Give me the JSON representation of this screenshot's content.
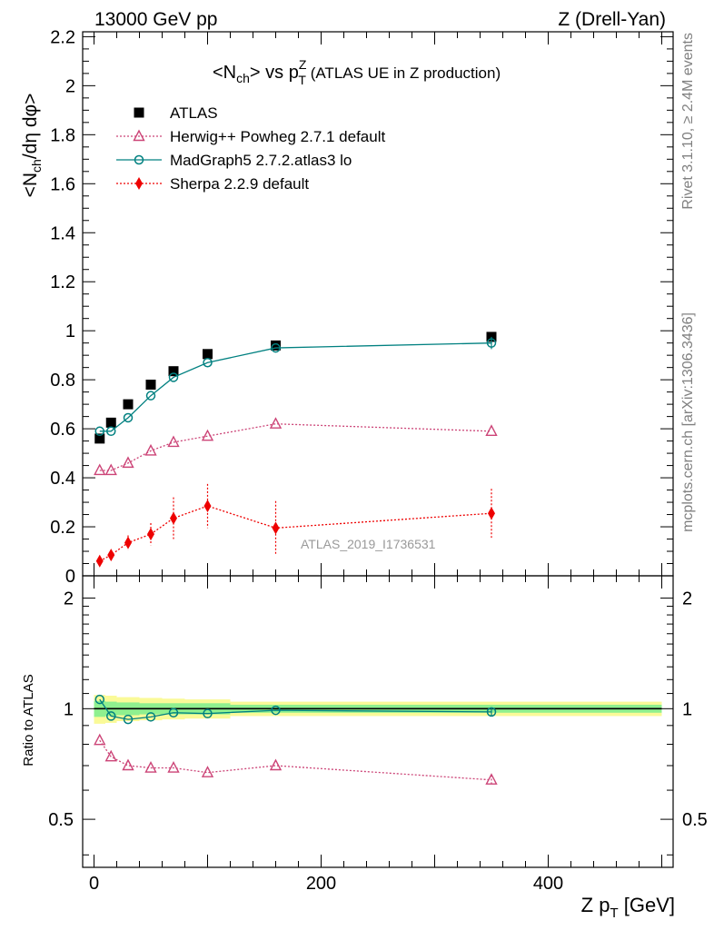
{
  "header": {
    "energy": "13000 GeV pp",
    "process": "Z (Drell-Yan)"
  },
  "side_labels": {
    "rivet": "Rivet 3.1.10, ≥ 2.4M events",
    "source": "mcplots.cern.ch [arXiv:1306.3436]"
  },
  "watermark": "ATLAS_2019_I1736531",
  "colors": {
    "atlas": "#000000",
    "herwig": "#cc4477",
    "madgraph": "#008080",
    "sherpa": "#ee0000",
    "band_inner": "#8ff08f",
    "band_outer": "#fafa98"
  },
  "chart_data": [
    {
      "type": "scatter",
      "panel": "main",
      "title": {
        "main": "<N",
        "sub": "ch",
        "mid": "> vs p",
        "sub2": "T",
        "sup2": "Z",
        "rest": " (ATLAS UE in Z production)"
      },
      "ylabel": {
        "a": "<N",
        "b": "ch",
        "c": "/dη dφ>"
      },
      "xlim": [
        -10,
        510
      ],
      "ylim": [
        0,
        2.22
      ],
      "yticks": [
        0,
        0.2,
        0.4,
        0.6,
        0.8,
        1,
        1.2,
        1.4,
        1.6,
        1.8,
        2,
        2.2
      ],
      "ytick_labels": [
        "0",
        "0.2",
        "0.4",
        "0.6",
        "0.8",
        "1",
        "1.2",
        "1.4",
        "1.6",
        "1.8",
        "2",
        "2.2"
      ],
      "legend_position": "top-left",
      "x": [
        5,
        15,
        30,
        50,
        70,
        100,
        160,
        350
      ],
      "series": [
        {
          "name": "ATLAS",
          "key": "atlas",
          "marker": "square",
          "values": [
            0.56,
            0.625,
            0.7,
            0.78,
            0.835,
            0.905,
            0.94,
            0.975
          ]
        },
        {
          "name": "Herwig++ Powheg 2.7.1 default",
          "key": "herwig",
          "marker": "triangle",
          "line": "dotted",
          "values": [
            0.43,
            0.43,
            0.46,
            0.51,
            0.545,
            0.57,
            0.62,
            0.59
          ]
        },
        {
          "name": "MadGraph5 2.7.2.atlas3 lo",
          "key": "madgraph",
          "marker": "circle",
          "line": "solid",
          "values": [
            0.59,
            0.59,
            0.645,
            0.735,
            0.81,
            0.87,
            0.93,
            0.95
          ],
          "errors": [
            0,
            0,
            0,
            0,
            0,
            0,
            0,
            0.025
          ]
        },
        {
          "name": "Sherpa 2.2.9 default",
          "key": "sherpa",
          "marker": "diamond",
          "line": "dotted",
          "values": [
            0.06,
            0.085,
            0.135,
            0.17,
            0.235,
            0.285,
            0.195,
            0.255
          ],
          "errors": [
            0.01,
            0.015,
            0.03,
            0.045,
            0.085,
            0.09,
            0.11,
            0.1
          ]
        }
      ]
    },
    {
      "type": "line",
      "panel": "ratio",
      "ylabel": "Ratio to ATLAS",
      "xlabel": {
        "a": "Z p",
        "sub": "T",
        "rest": " [GeV]"
      },
      "xlim": [
        -10,
        510
      ],
      "ylim": [
        0.37,
        2.3
      ],
      "yscale": "log",
      "yticks": [
        0.5,
        1,
        2
      ],
      "ytick_labels": [
        "0.5",
        "1",
        "2"
      ],
      "xticks": [
        0,
        200,
        400
      ],
      "xtick_labels": [
        "0",
        "200",
        "400"
      ],
      "x": [
        5,
        15,
        30,
        50,
        70,
        100,
        160,
        350
      ],
      "band_edges": [
        0,
        10,
        20,
        40,
        60,
        80,
        120,
        200,
        500
      ],
      "band_inner": [
        0.05,
        0.045,
        0.04,
        0.035,
        0.035,
        0.035,
        0.025,
        0.025
      ],
      "band_outer": [
        0.09,
        0.085,
        0.075,
        0.07,
        0.065,
        0.06,
        0.045,
        0.045
      ],
      "series": [
        {
          "name": "Herwig++ Powheg 2.7.1 default",
          "key": "herwig",
          "marker": "triangle",
          "line": "dotted",
          "values": [
            0.82,
            0.74,
            0.7,
            0.69,
            0.69,
            0.67,
            0.7,
            0.64
          ],
          "errors": [
            0,
            0,
            0,
            0,
            0,
            0,
            0,
            0.02
          ]
        },
        {
          "name": "MadGraph5 2.7.2.atlas3 lo",
          "key": "madgraph",
          "marker": "circle",
          "line": "solid",
          "values": [
            1.06,
            0.955,
            0.935,
            0.95,
            0.975,
            0.97,
            0.99,
            0.98
          ],
          "errors": [
            0,
            0,
            0,
            0,
            0,
            0,
            0,
            0.025
          ]
        }
      ]
    }
  ]
}
